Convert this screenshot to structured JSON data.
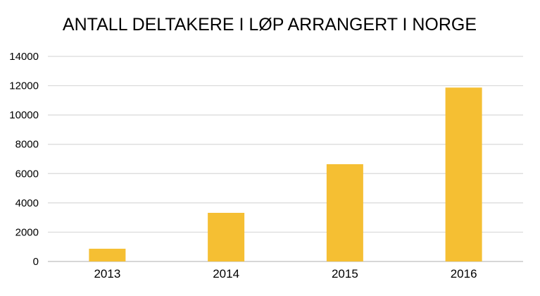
{
  "chart_data": {
    "type": "bar",
    "title": "ANTALL DELTAKERE I LØP ARRANGERT I NORGE",
    "categories": [
      "2013",
      "2014",
      "2015",
      "2016"
    ],
    "values": [
      870,
      3320,
      6640,
      11870
    ],
    "ylim": [
      0,
      14000
    ],
    "yticks": [
      "0",
      "2000",
      "4000",
      "6000",
      "8000",
      "10000",
      "12000",
      "14000"
    ],
    "grid": true,
    "bar_color": "#F5BF33",
    "grid_color": "#D9D9D9"
  }
}
